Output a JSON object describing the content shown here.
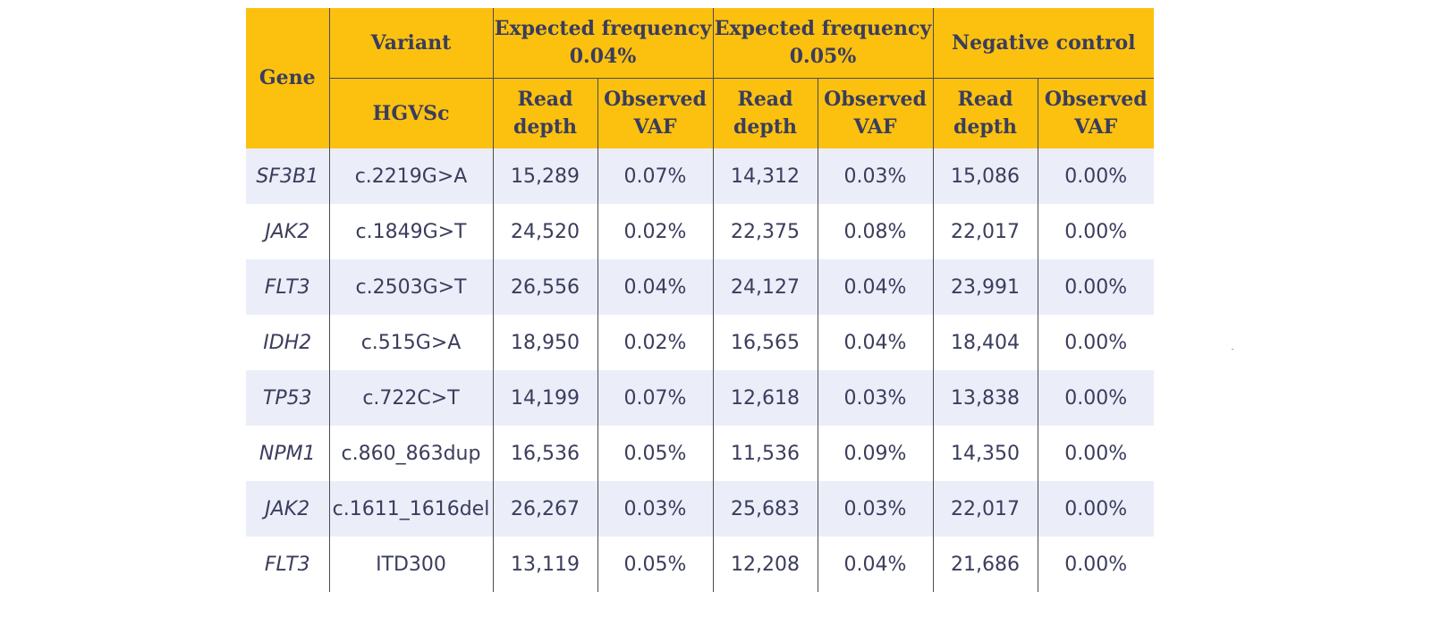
{
  "header": {
    "gene": "Gene",
    "variant": "Variant",
    "hgvsc": "HGVSc",
    "groups": [
      {
        "line1": "Expected frequency",
        "line2": "0.04%"
      },
      {
        "line1": "Expected frequency",
        "line2": "0.05%"
      },
      {
        "line1": "Negative control",
        "line2": ""
      }
    ],
    "read_depth": [
      "Read",
      "depth"
    ],
    "observed_vaf": [
      "Observed",
      "VAF"
    ]
  },
  "rows": [
    {
      "gene": "SF3B1",
      "hgvsc": "c.2219G>A",
      "rd1": "15,289",
      "vaf1": "0.07%",
      "rd2": "14,312",
      "vaf2": "0.03%",
      "rd3": "15,086",
      "vaf3": "0.00%"
    },
    {
      "gene": "JAK2",
      "hgvsc": "c.1849G>T",
      "rd1": "24,520",
      "vaf1": "0.02%",
      "rd2": "22,375",
      "vaf2": "0.08%",
      "rd3": "22,017",
      "vaf3": "0.00%"
    },
    {
      "gene": "FLT3",
      "hgvsc": "c.2503G>T",
      "rd1": "26,556",
      "vaf1": "0.04%",
      "rd2": "24,127",
      "vaf2": "0.04%",
      "rd3": "23,991",
      "vaf3": "0.00%"
    },
    {
      "gene": "IDH2",
      "hgvsc": "c.515G>A",
      "rd1": "18,950",
      "vaf1": "0.02%",
      "rd2": "16,565",
      "vaf2": "0.04%",
      "rd3": "18,404",
      "vaf3": "0.00%"
    },
    {
      "gene": "TP53",
      "hgvsc": "c.722C>T",
      "rd1": "14,199",
      "vaf1": "0.07%",
      "rd2": "12,618",
      "vaf2": "0.03%",
      "rd3": "13,838",
      "vaf3": "0.00%"
    },
    {
      "gene": "NPM1",
      "hgvsc": "c.860_863dup",
      "rd1": "16,536",
      "vaf1": "0.05%",
      "rd2": "11,536",
      "vaf2": "0.09%",
      "rd3": "14,350",
      "vaf3": "0.00%"
    },
    {
      "gene": "JAK2",
      "hgvsc": "c.1611_1616del",
      "rd1": "26,267",
      "vaf1": "0.03%",
      "rd2": "25,683",
      "vaf2": "0.03%",
      "rd3": "22,017",
      "vaf3": "0.00%"
    },
    {
      "gene": "FLT3",
      "hgvsc": "ITD300",
      "rd1": "13,119",
      "vaf1": "0.05%",
      "rd2": "12,208",
      "vaf2": "0.04%",
      "rd3": "21,686",
      "vaf3": "0.00%"
    }
  ],
  "colors": {
    "header_bg": "#FCC10F",
    "stripe_bg": "#EBEEF8",
    "text": "#3a3d5c"
  }
}
